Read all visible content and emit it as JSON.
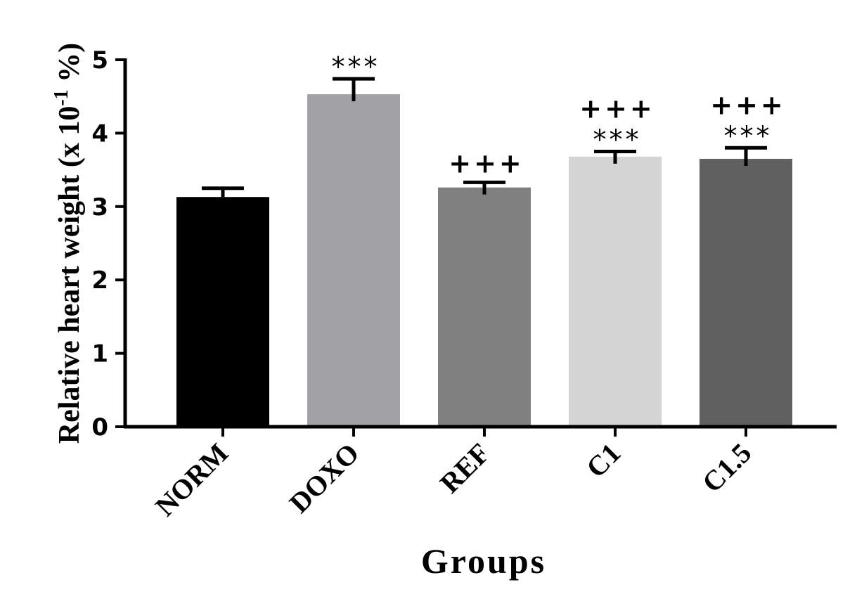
{
  "chart_data": {
    "type": "bar",
    "title": "",
    "xlabel": "Groups",
    "ylabel": {
      "main": "Relative heart weight (x 10",
      "superscript": "-1",
      "suffix": " %)"
    },
    "ylim": [
      0,
      5
    ],
    "yticks": [
      0,
      1,
      2,
      3,
      4,
      5
    ],
    "grid": false,
    "legend": "none",
    "categories": [
      "NORM",
      "DOXO",
      "REF",
      "C1",
      "C1.5"
    ],
    "values": [
      3.13,
      4.53,
      3.26,
      3.68,
      3.65
    ],
    "errors": [
      0.12,
      0.21,
      0.07,
      0.07,
      0.15
    ],
    "colors": [
      "#000000",
      "#a2a2a6",
      "#808080",
      "#d4d4d4",
      "#606060"
    ],
    "annotations": [
      {
        "category": "NORM",
        "lines": []
      },
      {
        "category": "DOXO",
        "lines": [
          "***"
        ]
      },
      {
        "category": "REF",
        "lines": [
          "+++"
        ]
      },
      {
        "category": "C1",
        "lines": [
          "+++",
          "***"
        ]
      },
      {
        "category": "C1.5",
        "lines": [
          "+++",
          "***"
        ]
      }
    ]
  }
}
